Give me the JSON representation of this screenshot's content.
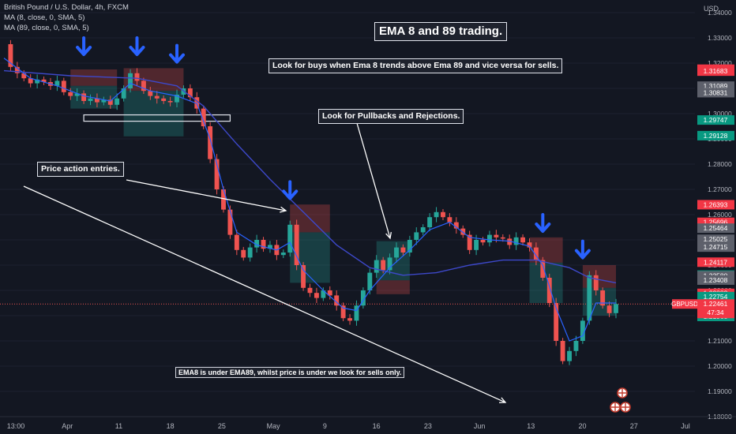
{
  "header": {
    "symbol_line": "British Pound / U.S. Dollar, 4h, FXCM",
    "ma_fast": "MA (8, close, 0, SMA, 5)",
    "ma_slow": "MA (89, close, 0, SMA, 5)"
  },
  "currency": "USD",
  "annotations": {
    "title": "EMA 8 and 89 trading.",
    "rule": "Look for buys when Ema 8 trends above Ema 89 and vice versa for sells.",
    "pullbacks": "Look for Pullbacks and Rejections.",
    "price_action": "Price action entries.",
    "bottom_note": "EMA8 is under EMA89, whilst price is under we look for sells only."
  },
  "symbol_tag": {
    "symbol": "GBPUSD",
    "countdown": "47:34"
  },
  "colors": {
    "background": "#131722",
    "bull": "#26a69a",
    "bear": "#ef5350",
    "ema_fast": "#2962ff",
    "ema_slow": "#3d48c9",
    "arrow": "#2962ff",
    "label_red": "#f23645",
    "label_green": "#089981",
    "label_gray": "#5d606b",
    "current_price_line": "#ef5350"
  },
  "chart_data": {
    "type": "candlestick",
    "instrument": "GBPUSD",
    "timeframe": "4h",
    "ylim": [
      1.18,
      1.345
    ],
    "y_ticks": [
      "1.34000",
      "1.33000",
      "1.32000",
      "1.31000",
      "1.30000",
      "1.29000",
      "1.28000",
      "1.27000",
      "1.26000",
      "1.25000",
      "1.24000",
      "1.23000",
      "1.22000",
      "1.21000",
      "1.20000",
      "1.19000",
      "1.18000"
    ],
    "x_ticks": [
      "13:00",
      "Apr",
      "11",
      "18",
      "25",
      "May",
      "9",
      "16",
      "23",
      "Jun",
      "13",
      "20",
      "27",
      "Jul"
    ],
    "price_path": [
      [
        0,
        1.3275
      ],
      [
        1,
        1.3185
      ],
      [
        2,
        1.316
      ],
      [
        3,
        1.314
      ],
      [
        4,
        1.312
      ],
      [
        5,
        1.3135
      ],
      [
        6,
        1.3125
      ],
      [
        7,
        1.311
      ],
      [
        8,
        1.313
      ],
      [
        9,
        1.3085
      ],
      [
        10,
        1.307
      ],
      [
        11,
        1.308
      ],
      [
        12,
        1.305
      ],
      [
        13,
        1.306
      ],
      [
        14,
        1.3045
      ],
      [
        15,
        1.3055
      ],
      [
        16,
        1.3035
      ],
      [
        17,
        1.306
      ],
      [
        18,
        1.31
      ],
      [
        19,
        1.316
      ],
      [
        20,
        1.313
      ],
      [
        21,
        1.309
      ],
      [
        22,
        1.307
      ],
      [
        23,
        1.306
      ],
      [
        24,
        1.305
      ],
      [
        25,
        1.3045
      ],
      [
        26,
        1.3075
      ],
      [
        27,
        1.31
      ],
      [
        28,
        1.3065
      ],
      [
        29,
        1.302
      ],
      [
        30,
        1.295
      ],
      [
        31,
        1.282
      ],
      [
        32,
        1.27
      ],
      [
        33,
        1.262
      ],
      [
        34,
        1.252
      ],
      [
        35,
        1.246
      ],
      [
        36,
        1.243
      ],
      [
        37,
        1.247
      ],
      [
        38,
        1.25
      ],
      [
        39,
        1.2465
      ],
      [
        40,
        1.248
      ],
      [
        41,
        1.244
      ],
      [
        42,
        1.245
      ],
      [
        43,
        1.256
      ],
      [
        44,
        1.24
      ],
      [
        45,
        1.231
      ],
      [
        46,
        1.229
      ],
      [
        47,
        1.227
      ],
      [
        48,
        1.23
      ],
      [
        49,
        1.228
      ],
      [
        50,
        1.224
      ],
      [
        51,
        1.219
      ],
      [
        52,
        1.218
      ],
      [
        53,
        1.224
      ],
      [
        54,
        1.23
      ],
      [
        55,
        1.237
      ],
      [
        56,
        1.242
      ],
      [
        57,
        1.238
      ],
      [
        58,
        1.243
      ],
      [
        59,
        1.247
      ],
      [
        60,
        1.245
      ],
      [
        61,
        1.25
      ],
      [
        62,
        1.253
      ],
      [
        63,
        1.255
      ],
      [
        64,
        1.259
      ],
      [
        65,
        1.261
      ],
      [
        66,
        1.259
      ],
      [
        67,
        1.257
      ],
      [
        68,
        1.2545
      ],
      [
        69,
        1.252
      ],
      [
        70,
        1.246
      ],
      [
        71,
        1.25
      ],
      [
        72,
        1.249
      ],
      [
        73,
        1.252
      ],
      [
        74,
        1.251
      ],
      [
        75,
        1.2505
      ],
      [
        76,
        1.248
      ],
      [
        77,
        1.251
      ],
      [
        78,
        1.249
      ],
      [
        79,
        1.247
      ],
      [
        80,
        1.242
      ],
      [
        81,
        1.235
      ],
      [
        82,
        1.225
      ],
      [
        83,
        1.21
      ],
      [
        84,
        1.202
      ],
      [
        85,
        1.206
      ],
      [
        86,
        1.21
      ],
      [
        87,
        1.218
      ],
      [
        88,
        1.236
      ],
      [
        89,
        1.23
      ],
      [
        90,
        1.224
      ],
      [
        91,
        1.221
      ],
      [
        92,
        1.2246
      ]
    ],
    "ema_fast_path": [
      [
        0,
        1.322
      ],
      [
        4,
        1.314
      ],
      [
        8,
        1.311
      ],
      [
        12,
        1.307
      ],
      [
        16,
        1.305
      ],
      [
        19,
        1.312
      ],
      [
        22,
        1.309
      ],
      [
        26,
        1.307
      ],
      [
        29,
        1.304
      ],
      [
        31,
        1.29
      ],
      [
        33,
        1.27
      ],
      [
        35,
        1.253
      ],
      [
        38,
        1.248
      ],
      [
        41,
        1.246
      ],
      [
        43,
        1.249
      ],
      [
        45,
        1.238
      ],
      [
        48,
        1.23
      ],
      [
        51,
        1.223
      ],
      [
        53,
        1.222
      ],
      [
        55,
        1.23
      ],
      [
        58,
        1.239
      ],
      [
        61,
        1.246
      ],
      [
        64,
        1.254
      ],
      [
        67,
        1.257
      ],
      [
        70,
        1.251
      ],
      [
        73,
        1.25
      ],
      [
        76,
        1.2495
      ],
      [
        79,
        1.2475
      ],
      [
        81,
        1.24
      ],
      [
        83,
        1.223
      ],
      [
        85,
        1.21
      ],
      [
        87,
        1.212
      ],
      [
        89,
        1.225
      ],
      [
        92,
        1.225
      ]
    ],
    "ema_slow_path": [
      [
        0,
        1.317
      ],
      [
        10,
        1.315
      ],
      [
        20,
        1.314
      ],
      [
        26,
        1.311
      ],
      [
        30,
        1.303
      ],
      [
        35,
        1.288
      ],
      [
        40,
        1.274
      ],
      [
        45,
        1.261
      ],
      [
        50,
        1.248
      ],
      [
        55,
        1.239
      ],
      [
        60,
        1.236
      ],
      [
        65,
        1.237
      ],
      [
        70,
        1.24
      ],
      [
        75,
        1.242
      ],
      [
        80,
        1.242
      ],
      [
        85,
        1.239
      ],
      [
        88,
        1.235
      ],
      [
        92,
        1.233
      ]
    ],
    "trade_setups": [
      {
        "entry_bar": 10,
        "end_bar": 17,
        "stop": 1.3175,
        "entry": 1.311,
        "target": 1.302
      },
      {
        "entry_bar": 18,
        "end_bar": 27,
        "stop": 1.318,
        "entry": 1.309,
        "target": 1.291
      },
      {
        "entry_bar": 43,
        "end_bar": 49,
        "stop": 1.264,
        "entry": 1.253,
        "target": 1.233
      },
      {
        "entry_bar": 56,
        "end_bar": 61,
        "stop": 1.2285,
        "entry": 1.234,
        "target": 1.2495
      },
      {
        "entry_bar": 79,
        "end_bar": 84,
        "stop": 1.251,
        "entry": 1.241,
        "target": 1.225
      },
      {
        "entry_bar": 87,
        "end_bar": 92,
        "stop": 1.24,
        "entry": 1.231,
        "target": 1.22
      }
    ],
    "signal_arrows": [
      {
        "bar": 12,
        "price": 1.3225
      },
      {
        "bar": 20,
        "price": 1.3225
      },
      {
        "bar": 26,
        "price": 1.3195
      },
      {
        "bar": 43,
        "price": 1.2655
      },
      {
        "bar": 81,
        "price": 1.2525
      },
      {
        "bar": 87,
        "price": 1.242
      }
    ],
    "support_zone": {
      "start_bar": 12,
      "end_bar": 34,
      "top": 1.2995,
      "bottom": 1.297
    },
    "current_price": 1.22461,
    "price_labels": [
      {
        "value": "1.31760",
        "color": "red"
      },
      {
        "value": "1.31683",
        "color": "red"
      },
      {
        "value": "1.31089",
        "color": "gray"
      },
      {
        "value": "1.30831",
        "color": "gray"
      },
      {
        "value": "1.29747",
        "color": "green"
      },
      {
        "value": "1.29128",
        "color": "green"
      },
      {
        "value": "1.26393",
        "color": "red"
      },
      {
        "value": "1.25696",
        "color": "red"
      },
      {
        "value": "1.25464",
        "color": "gray"
      },
      {
        "value": "1.25025",
        "color": "gray"
      },
      {
        "value": "1.24715",
        "color": "gray"
      },
      {
        "value": "1.24117",
        "color": "red"
      },
      {
        "value": "1.23606",
        "color": "green"
      },
      {
        "value": "1.23580",
        "color": "gray"
      },
      {
        "value": "1.23408",
        "color": "gray"
      },
      {
        "value": "1.22883",
        "color": "red"
      },
      {
        "value": "1.22754",
        "color": "green"
      },
      {
        "value": "1.21968",
        "color": "green"
      }
    ]
  }
}
